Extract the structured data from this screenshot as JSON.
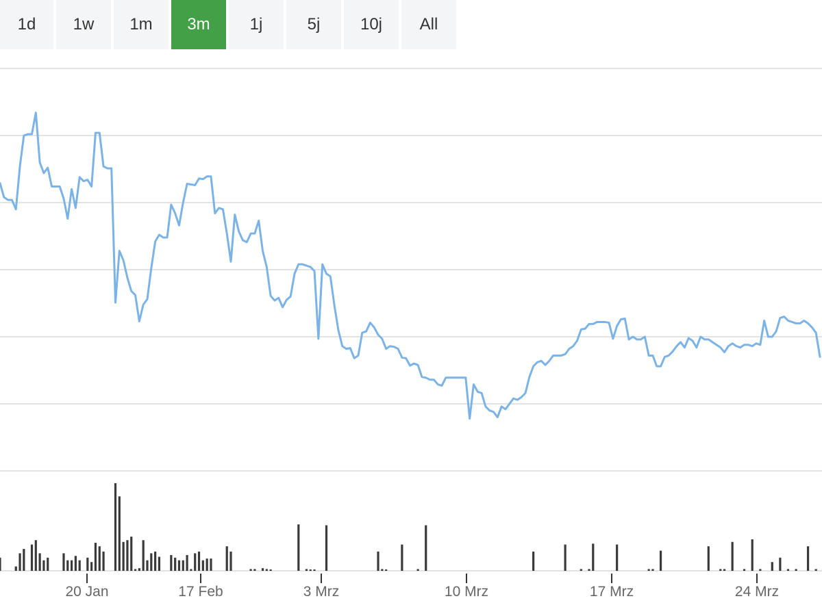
{
  "tabs": [
    {
      "label": "1d",
      "active": false
    },
    {
      "label": "1w",
      "active": false
    },
    {
      "label": "1m",
      "active": false
    },
    {
      "label": "3m",
      "active": true
    },
    {
      "label": "1j",
      "active": false
    },
    {
      "label": "5j",
      "active": false
    },
    {
      "label": "10j",
      "active": false
    },
    {
      "label": "All",
      "active": false
    }
  ],
  "colors": {
    "accent": "#43a047",
    "line": "#7cb3e6",
    "volume": "#3a3a3a",
    "grid": "#e3e3e3",
    "tab_bg": "#f4f5f6"
  },
  "chart_data": {
    "type": "line",
    "x_ticks": [
      "20 Jan",
      "17 Feb",
      "3 Mrz",
      "10 Mrz",
      "17 Mrz",
      "24 Mrz"
    ],
    "grid": true,
    "y_axis_labels_shown": false,
    "ylim": [
      0,
      6
    ],
    "series": [
      {
        "type": "line",
        "values": [
          4.29,
          4.08,
          4.04,
          4.04,
          3.9,
          4.54,
          5.0,
          5.02,
          5.02,
          5.34,
          4.6,
          4.44,
          4.52,
          4.24,
          4.24,
          4.24,
          4.06,
          3.76,
          4.2,
          3.92,
          4.38,
          4.32,
          4.34,
          4.24,
          5.04,
          5.04,
          4.54,
          4.51,
          4.51,
          2.51,
          3.28,
          3.14,
          2.88,
          2.68,
          2.62,
          2.23,
          2.48,
          2.56,
          3.02,
          3.42,
          3.52,
          3.48,
          3.48,
          3.97,
          3.84,
          3.66,
          4.0,
          4.28,
          4.27,
          4.26,
          4.36,
          4.35,
          4.39,
          4.39,
          3.84,
          3.92,
          3.9,
          3.54,
          3.12,
          3.82,
          3.57,
          3.44,
          3.41,
          3.54,
          3.54,
          3.73,
          3.28,
          3.04,
          2.61,
          2.54,
          2.58,
          2.44,
          2.55,
          2.6,
          2.94,
          3.08,
          3.08,
          3.06,
          3.04,
          2.98,
          1.97,
          3.08,
          2.94,
          2.9,
          2.47,
          2.1,
          1.86,
          1.82,
          1.83,
          1.68,
          1.72,
          2.06,
          2.08,
          2.21,
          2.14,
          2.03,
          1.97,
          1.82,
          1.86,
          1.85,
          1.82,
          1.69,
          1.68,
          1.57,
          1.6,
          1.58,
          1.4,
          1.39,
          1.36,
          1.36,
          1.29,
          1.27,
          1.39,
          1.39,
          1.39,
          1.39,
          1.39,
          1.39,
          0.78,
          1.29,
          1.18,
          1.16,
          0.96,
          0.9,
          0.88,
          0.8,
          0.96,
          0.92,
          1.0,
          1.08,
          1.06,
          1.1,
          1.16,
          1.4,
          1.56,
          1.62,
          1.64,
          1.58,
          1.64,
          1.72,
          1.72,
          1.72,
          1.74,
          1.82,
          1.86,
          1.94,
          2.11,
          2.12,
          2.19,
          2.19,
          2.22,
          2.22,
          2.22,
          2.21,
          1.97,
          2.16,
          2.26,
          2.27,
          1.96,
          2.0,
          1.96,
          1.96,
          2.0,
          1.72,
          1.72,
          1.56,
          1.56,
          1.7,
          1.72,
          1.78,
          1.86,
          1.92,
          1.84,
          1.98,
          1.94,
          1.84,
          2.0,
          1.96,
          1.96,
          1.92,
          1.88,
          1.84,
          1.77,
          1.86,
          1.9,
          1.86,
          1.84,
          1.88,
          1.88,
          1.86,
          1.9,
          1.88,
          2.24,
          2.0,
          2.0,
          2.08,
          2.28,
          2.3,
          2.24,
          2.22,
          2.2,
          2.2,
          2.24,
          2.2,
          2.14,
          2.06,
          1.7
        ]
      },
      {
        "type": "bar",
        "values": [
          0.15,
          0,
          0,
          0,
          0.05,
          0.2,
          0.25,
          0,
          0.3,
          0.35,
          0.2,
          0.12,
          0.15,
          0,
          0,
          0,
          0.2,
          0.12,
          0.12,
          0.17,
          0.12,
          0,
          0.15,
          0.1,
          0.32,
          0.28,
          0.22,
          0,
          0,
          1.0,
          0.85,
          0.33,
          0.35,
          0.39,
          0.02,
          0.03,
          0.35,
          0.12,
          0.2,
          0.22,
          0.16,
          0,
          0,
          0.18,
          0.15,
          0.12,
          0.12,
          0.18,
          0.02,
          0.2,
          0.22,
          0.12,
          0.14,
          0.14,
          0,
          0,
          0,
          0.28,
          0.22,
          0,
          0,
          0,
          0,
          0.02,
          0.02,
          0,
          0.03,
          0.02,
          0.01,
          0,
          0,
          0,
          0,
          0,
          0,
          0.53,
          0,
          0.02,
          0.01,
          0.01,
          0,
          0,
          0.52,
          0,
          0,
          0,
          0,
          0,
          0,
          0,
          0,
          0,
          0,
          0,
          0,
          0.22,
          0.02,
          0.01,
          0,
          0,
          0,
          0.3,
          0,
          0,
          0,
          0.02,
          0,
          0.52,
          0,
          0,
          0,
          0,
          0,
          0,
          0,
          0,
          0,
          0,
          0,
          0,
          0,
          0,
          0,
          0,
          0,
          0,
          0,
          0,
          0,
          0,
          0,
          0,
          0,
          0,
          0.22,
          0,
          0,
          0,
          0,
          0,
          0,
          0,
          0.3,
          0,
          0,
          0,
          0.02,
          0,
          0.02,
          0.31,
          0,
          0,
          0,
          0,
          0,
          0.3,
          0,
          0,
          0,
          0,
          0,
          0,
          0,
          0.02,
          0.02,
          0,
          0.23,
          0,
          0,
          0,
          0,
          0,
          0,
          0,
          0,
          0,
          0,
          0,
          0.28,
          0,
          0,
          0.02,
          0.02,
          0,
          0.33,
          0,
          0,
          0.02,
          0,
          0.36,
          0,
          0.02,
          0,
          0,
          0.1,
          0,
          0.15,
          0,
          0.02,
          0,
          0.02,
          0,
          0,
          0.28,
          0,
          0.02,
          0,
          0,
          0.06,
          0.05,
          0.15,
          0,
          0,
          0.02,
          0.02,
          0,
          0.02,
          0,
          0.08
        ]
      }
    ]
  }
}
